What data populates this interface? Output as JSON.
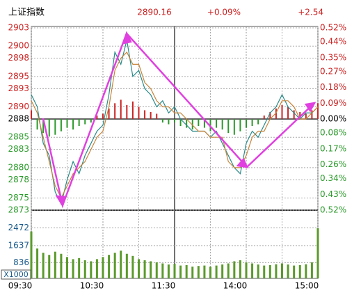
{
  "chart_data": {
    "type": "line",
    "title": "上证指数",
    "price": "2890.16",
    "change_pct": "+0.09%",
    "change": "+2.54",
    "x": [
      0,
      5,
      10,
      15,
      20,
      25,
      30,
      35,
      40,
      45,
      50,
      55,
      60,
      65,
      70,
      75,
      80,
      85,
      90,
      95,
      100,
      105,
      110,
      115,
      120,
      125,
      130,
      135,
      140,
      145,
      150,
      155,
      160,
      165,
      170,
      175,
      180,
      185,
      190,
      195,
      200,
      205,
      210,
      215,
      220,
      225,
      230,
      235,
      240
    ],
    "xlim": [
      0,
      240
    ],
    "xticks": [
      {
        "value": 0,
        "label": "09:30"
      },
      {
        "value": 60,
        "label": "10:30"
      },
      {
        "value": 120,
        "label": "11:30"
      },
      {
        "value": 180,
        "label": "14:00"
      },
      {
        "value": 240,
        "label": "15:00"
      }
    ],
    "ylim": [
      2873,
      2903
    ],
    "yticks": [
      2903,
      2900,
      2898,
      2895,
      2893,
      2890,
      2888,
      2885,
      2883,
      2880,
      2878,
      2875,
      2873
    ],
    "y2lim": [
      -0.52,
      0.52
    ],
    "y2ticks": [
      {
        "value": 0.52,
        "label": "0.52%"
      },
      {
        "value": 0.44,
        "label": "0.44%"
      },
      {
        "value": 0.35,
        "label": "0.35%"
      },
      {
        "value": 0.27,
        "label": "0.27%"
      },
      {
        "value": 0.18,
        "label": "0.18%"
      },
      {
        "value": 0.09,
        "label": "0.09%"
      },
      {
        "value": 0,
        "label": "0.00%"
      },
      {
        "value": -0.08,
        "label": "0.08%"
      },
      {
        "value": -0.17,
        "label": "0.17%"
      },
      {
        "value": -0.26,
        "label": "0.26%"
      },
      {
        "value": -0.34,
        "label": "0.34%"
      },
      {
        "value": -0.43,
        "label": "0.43%"
      },
      {
        "value": -0.52,
        "label": "0.52%"
      }
    ],
    "series": [
      {
        "color": "#2a8a8a",
        "values": [
          2892,
          2890,
          2884,
          2882,
          2876,
          2874,
          2878,
          2881,
          2879,
          2882,
          2884,
          2886,
          2887,
          2892,
          2899,
          2897,
          2901,
          2895,
          2896,
          2893,
          2892,
          2890,
          2891,
          2889,
          2890,
          2888,
          2887,
          2886,
          2886,
          2886,
          2885,
          2886,
          2884,
          2882,
          2880,
          2879,
          2884,
          2886,
          2885,
          2887,
          2889,
          2890,
          2892,
          2890,
          2889,
          2888,
          2889,
          2889,
          2890
        ]
      },
      {
        "color": "#c8843a",
        "values": [
          2891,
          2889,
          2885,
          2881,
          2877,
          2875,
          2877,
          2879,
          2880,
          2881,
          2883,
          2885,
          2886,
          2890,
          2896,
          2898,
          2899,
          2897,
          2897,
          2894,
          2893,
          2891,
          2890,
          2890,
          2889,
          2889,
          2888,
          2887,
          2886,
          2886,
          2885,
          2885,
          2885,
          2881,
          2880,
          2880,
          2882,
          2885,
          2886,
          2886,
          2888,
          2889,
          2891,
          2891,
          2890,
          2888,
          2888,
          2889,
          2890
        ]
      }
    ],
    "breadth": {
      "pos_color": "#cc2222",
      "neg_color": "#2a9a2a",
      "values": [
        0.05,
        -0.06,
        -0.08,
        -0.1,
        -0.09,
        -0.07,
        -0.05,
        -0.06,
        -0.04,
        -0.03,
        -0.02,
        0.02,
        0.03,
        0.06,
        0.09,
        0.11,
        0.08,
        0.1,
        0.07,
        0.05,
        0.04,
        0.03,
        -0.02,
        -0.03,
        -0.02,
        -0.04,
        -0.05,
        -0.06,
        -0.04,
        -0.05,
        -0.07,
        -0.05,
        -0.06,
        -0.08,
        -0.09,
        -0.07,
        -0.05,
        -0.04,
        -0.03,
        0.02,
        0.04,
        0.06,
        0.08,
        0.07,
        0.05,
        0.04,
        0.03,
        0.05,
        0.09
      ]
    },
    "volume": {
      "color": "#5a9a2a",
      "unit": "X1000",
      "vlim": [
        0,
        3200
      ],
      "vticks": [
        836,
        1637,
        2472
      ],
      "values": [
        2300,
        1500,
        1300,
        1200,
        1350,
        1250,
        1100,
        1000,
        1050,
        950,
        900,
        1000,
        1100,
        1200,
        1300,
        1400,
        1250,
        1150,
        1000,
        950,
        900,
        850,
        800,
        750,
        780,
        700,
        720,
        650,
        680,
        700,
        650,
        700,
        750,
        800,
        900,
        950,
        850,
        800,
        750,
        700,
        720,
        760,
        800,
        750,
        700,
        720,
        760,
        850,
        2450
      ]
    }
  }
}
